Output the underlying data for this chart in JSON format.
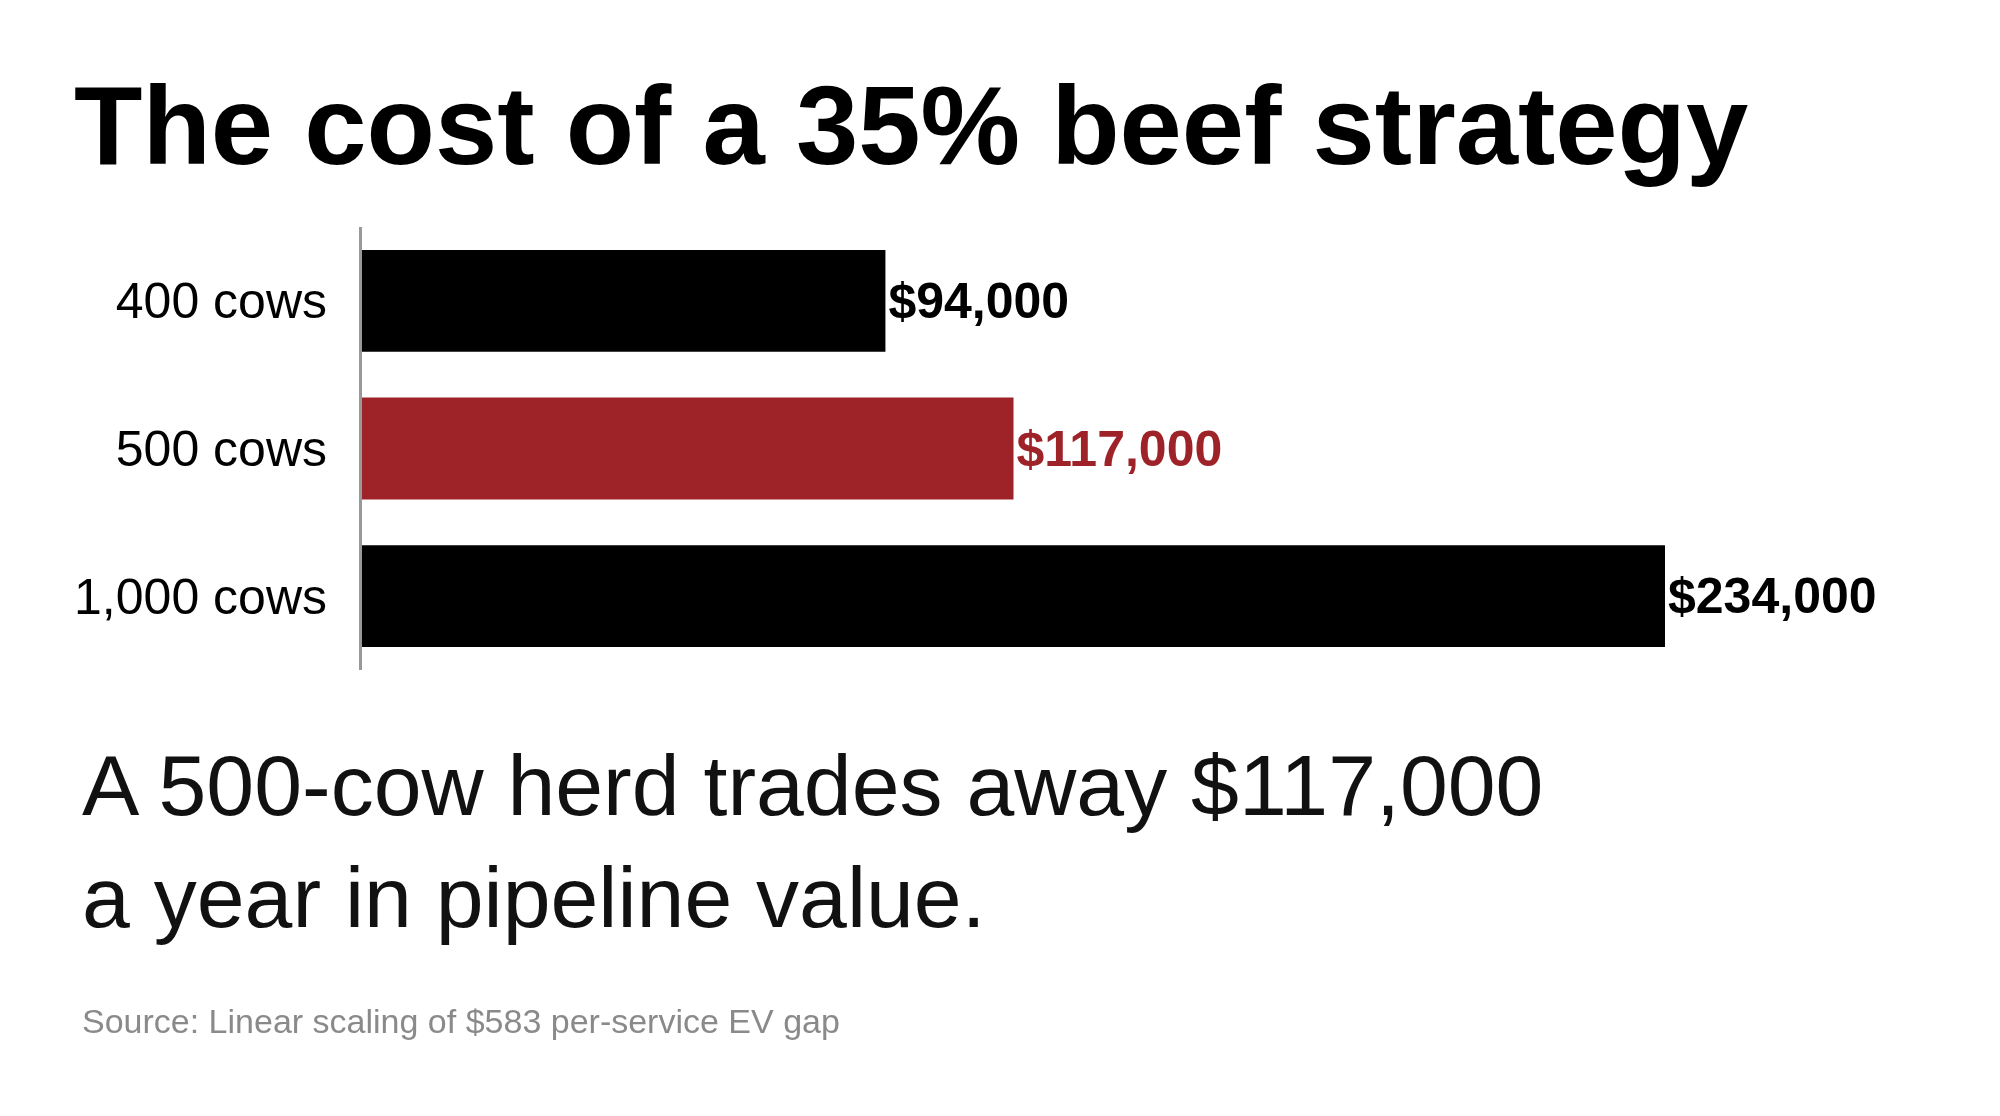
{
  "chart_data": {
    "type": "bar",
    "orientation": "horizontal",
    "title": "The cost of a 35% beef strategy",
    "subtitle": "A 500-cow herd trades away $117,000 a year in pipeline value.",
    "annotations": [
      "Source: Linear scaling of $583 per-service EV gap"
    ],
    "categories": [
      "400 cows",
      "500 cows",
      "1,000 cows"
    ],
    "values": [
      94000,
      117000,
      234000
    ],
    "colors": [
      "#000000",
      "#9e2328",
      "#000000"
    ],
    "value_labels": [
      "$94,000",
      "$117,000",
      "$234,000"
    ],
    "tick_labels": "y"
  }
}
